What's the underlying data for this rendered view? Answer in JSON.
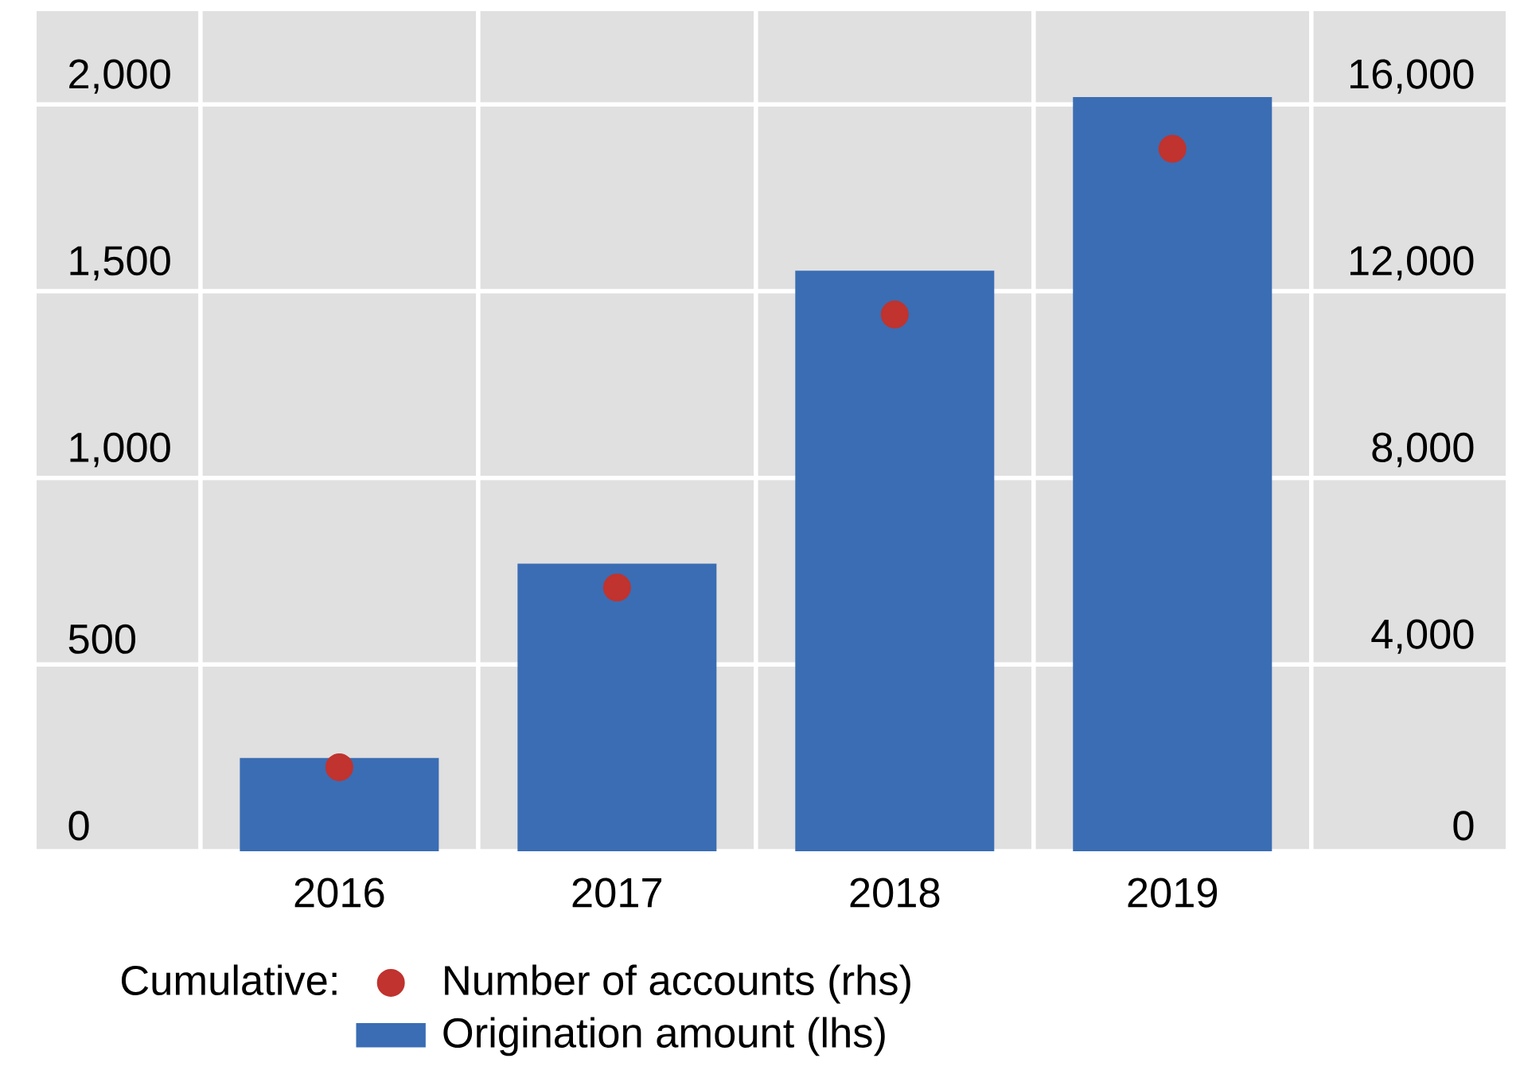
{
  "chart_data": {
    "type": "bar",
    "categories": [
      "2016",
      "2017",
      "2018",
      "2019"
    ],
    "series": [
      {
        "name": "Origination amount (lhs)",
        "color": "#3a6db4",
        "values": [
          250,
          770,
          1555,
          2020
        ]
      },
      {
        "name": "Number of accounts (rhs)",
        "type": "scatter",
        "axis": "y2",
        "color": "#c0332f",
        "values": [
          1800,
          5650,
          11500,
          15050
        ]
      }
    ],
    "ylim": [
      0,
      2250
    ],
    "yticks": [
      {
        "value": 0,
        "label": "0"
      },
      {
        "value": 500,
        "label": "500"
      },
      {
        "value": 1000,
        "label": "1,000"
      },
      {
        "value": 1500,
        "label": "1,500"
      },
      {
        "value": 2000,
        "label": "2,000"
      }
    ],
    "y2lim": [
      0,
      18000
    ],
    "y2ticks": [
      {
        "value": 0,
        "label": "0"
      },
      {
        "value": 4000,
        "label": "4,000"
      },
      {
        "value": 8000,
        "label": "8,000"
      },
      {
        "value": 12000,
        "label": "12,000"
      },
      {
        "value": 16000,
        "label": "16,000"
      }
    ],
    "grid": true,
    "legend": "bottom",
    "legend_title": "Cumulative:"
  }
}
